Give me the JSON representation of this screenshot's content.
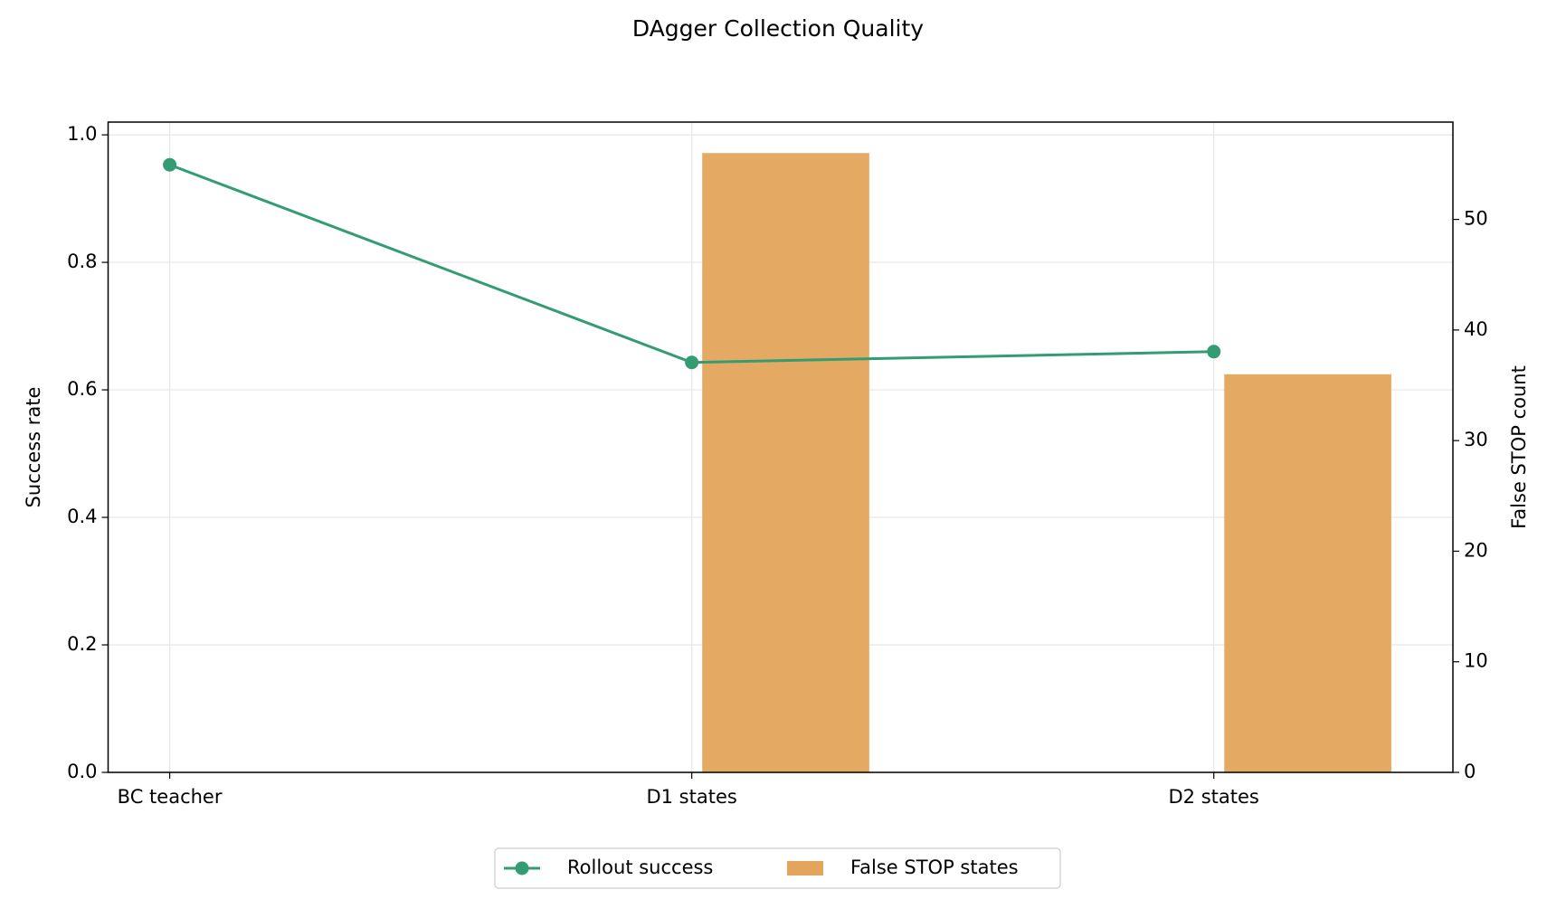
{
  "chart_data": {
    "type": "bar-line",
    "title": "DAgger Collection Quality",
    "categories": [
      "BC teacher",
      "D1 states",
      "D2 states"
    ],
    "series": [
      {
        "name": "Rollout success",
        "type": "line",
        "color": "#339c73",
        "values": [
          0.953,
          0.643,
          0.66
        ]
      },
      {
        "name": "False STOP states",
        "type": "bar",
        "color": "#e3a55c",
        "axis": "y2",
        "values": [
          0,
          56,
          36
        ]
      }
    ],
    "ylabel": "Success rate",
    "y2label": "False STOP count",
    "ylim": [
      0,
      1.02
    ],
    "yticks": [
      0.0,
      0.2,
      0.4,
      0.6,
      0.8,
      1.0
    ],
    "y2lim": [
      0,
      58.8
    ],
    "y2ticks": [
      0,
      10,
      20,
      30,
      40,
      50
    ],
    "grid": true,
    "legend": "bottom"
  }
}
